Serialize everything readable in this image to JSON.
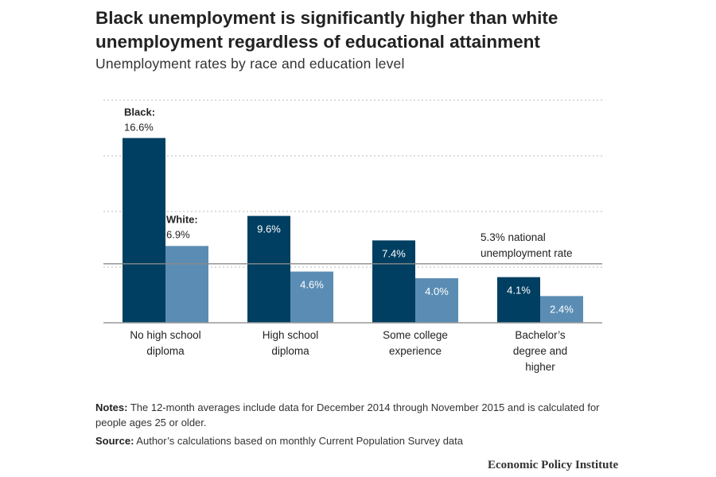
{
  "title": "Black unemployment is significantly higher than white unemployment regardless of educational attainment",
  "subtitle": "Unemployment rates by race and education level",
  "chart_data": {
    "type": "bar",
    "categories": [
      [
        "No high school",
        "diploma"
      ],
      [
        "High school",
        "diploma"
      ],
      [
        "Some college",
        "experience"
      ],
      [
        "Bachelor’s",
        "degree and",
        "higher"
      ]
    ],
    "series": [
      {
        "name": "Black:",
        "color": "#003f62",
        "values": [
          16.6,
          9.6,
          7.4,
          4.1
        ],
        "labels": [
          "16.6%",
          "9.6%",
          "7.4%",
          "4.1%"
        ]
      },
      {
        "name": "White:",
        "color": "#5b8db4",
        "values": [
          6.9,
          4.6,
          4.0,
          2.4
        ],
        "labels": [
          "6.9%",
          "4.6%",
          "4.0%",
          "2.4%"
        ]
      }
    ],
    "reference_line": {
      "value": 5.3,
      "label": [
        "5.3% national",
        "unemployment rate"
      ]
    },
    "ylim": [
      0,
      20
    ],
    "gridlines": [
      5,
      10,
      15,
      20
    ],
    "grid": true,
    "axis_color": "#999999",
    "grid_color": "#c8c8c8"
  },
  "notes": {
    "label": "Notes:",
    "text": " The 12-month averages include data for December 2014 through November 2015 and is calculated for people ages 25 or older."
  },
  "source": {
    "label": "Source:",
    "text": " Author’s calculations based on monthly Current Population Survey data"
  },
  "logo": "Economic Policy Institute"
}
